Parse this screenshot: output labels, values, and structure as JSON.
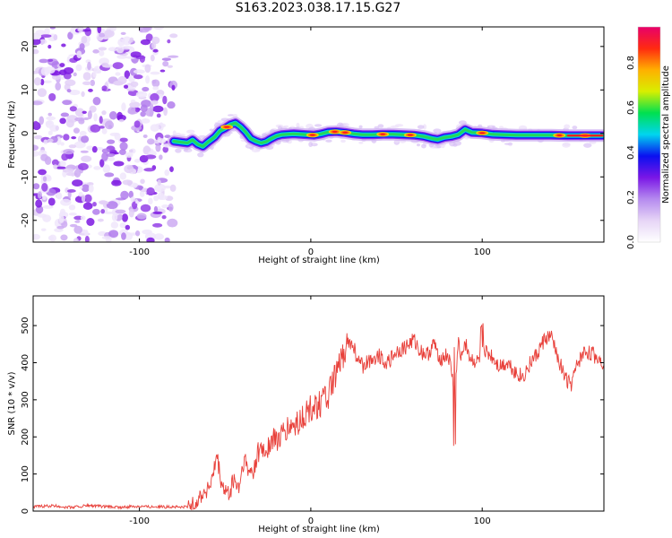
{
  "title": "S163.2023.038.17.15.G27",
  "chart_data": [
    {
      "type": "heatmap",
      "title": "S163.2023.038.17.15.G27",
      "xlabel": "Height of straight line (km)",
      "ylabel": "Frequency (Hz)",
      "xlim": [
        -162,
        171
      ],
      "ylim": [
        -25,
        24.5
      ],
      "xticks": [
        -100,
        0,
        100
      ],
      "yticks": [
        -20,
        -10,
        0,
        10,
        20
      ],
      "colorbar": {
        "label": "Normalized spectral amplitude",
        "ticks": [
          0.0,
          0.2,
          0.4,
          0.6,
          0.8
        ],
        "range": [
          0.0,
          0.96
        ],
        "colormap": [
          "#ffffff",
          "#e6d5f6",
          "#b58aef",
          "#7a16e6",
          "#0a10f0",
          "#00d5ef",
          "#00e050",
          "#d8ef00",
          "#ffb000",
          "#ff2a10",
          "#e8006a"
        ]
      },
      "noise_region_x": [
        -162,
        -80
      ],
      "ridge": {
        "x": [
          -80,
          -76,
          -72,
          -69,
          -66,
          -63,
          -60,
          -56,
          -53,
          -50,
          -47,
          -44,
          -41,
          -38,
          -35,
          -32,
          -29,
          -26,
          -24,
          -22,
          -20,
          -17,
          -14,
          -10,
          -6,
          -2,
          2,
          6,
          10,
          15,
          20,
          25,
          30,
          36,
          42,
          48,
          54,
          60,
          66,
          71,
          74,
          78,
          82,
          86,
          90,
          94,
          100,
          106,
          112,
          120,
          130,
          140,
          150,
          160,
          170
        ],
        "y": [
          -1.8,
          -2.0,
          -2.2,
          -1.5,
          -2.5,
          -3.0,
          -2.0,
          -0.8,
          0.6,
          1.2,
          2.0,
          2.4,
          1.5,
          0.3,
          -1.2,
          -1.8,
          -2.2,
          -1.9,
          -1.4,
          -1.0,
          -0.6,
          -0.3,
          -0.2,
          -0.1,
          -0.2,
          -0.3,
          -0.4,
          -0.1,
          0.3,
          0.4,
          0.2,
          -0.1,
          -0.3,
          -0.3,
          -0.2,
          -0.2,
          -0.3,
          -0.4,
          -0.7,
          -1.2,
          -1.4,
          -0.9,
          -0.7,
          -0.3,
          0.9,
          0.2,
          0.1,
          -0.2,
          -0.3,
          -0.4,
          -0.4,
          -0.4,
          -0.5,
          -0.5,
          -0.5
        ]
      },
      "bright_spots_x": [
        -49,
        1,
        14,
        20,
        42,
        58,
        100,
        145,
        160
      ]
    },
    {
      "type": "line",
      "xlabel": "Height of straight line (km)",
      "ylabel": "SNR (10 * v/v)",
      "xlim": [
        -162,
        171
      ],
      "ylim": [
        0,
        580
      ],
      "xticks": [
        -100,
        0,
        100
      ],
      "yticks": [
        0,
        100,
        200,
        300,
        400,
        500
      ],
      "color": "#e8403a",
      "series": [
        {
          "x": [
            -162,
            -150,
            -140,
            -130,
            -120,
            -110,
            -100,
            -95,
            -90,
            -85,
            -80,
            -75,
            -72,
            -68,
            -64,
            -60,
            -57,
            -55,
            -52,
            -48,
            -45,
            -42,
            -39,
            -36,
            -33,
            -30,
            -27,
            -24,
            -21,
            -18,
            -15,
            -12,
            -9,
            -6,
            -3,
            0,
            4,
            8,
            12,
            16,
            19,
            21,
            23,
            25,
            28,
            31,
            35,
            40,
            45,
            50,
            55,
            60,
            64,
            68,
            72,
            76,
            80,
            82,
            84,
            86,
            88,
            90,
            93,
            97,
            101,
            105,
            110,
            115,
            120,
            124,
            128,
            132,
            136,
            140,
            144,
            148,
            152,
            156,
            160,
            165,
            171
          ],
          "y": [
            12,
            14,
            10,
            15,
            12,
            10,
            14,
            12,
            13,
            11,
            12,
            10,
            12,
            20,
            45,
            60,
            90,
            150,
            70,
            40,
            85,
            60,
            140,
            100,
            120,
            170,
            160,
            180,
            195,
            190,
            215,
            225,
            230,
            245,
            260,
            275,
            290,
            300,
            330,
            380,
            420,
            460,
            450,
            440,
            400,
            390,
            410,
            420,
            400,
            430,
            440,
            460,
            430,
            420,
            450,
            410,
            420,
            380,
            300,
            450,
            420,
            460,
            410,
            400,
            430,
            420,
            390,
            400,
            370,
            360,
            400,
            420,
            460,
            470,
            420,
            360,
            340,
            400,
            430,
            420,
            400
          ]
        }
      ]
    }
  ]
}
